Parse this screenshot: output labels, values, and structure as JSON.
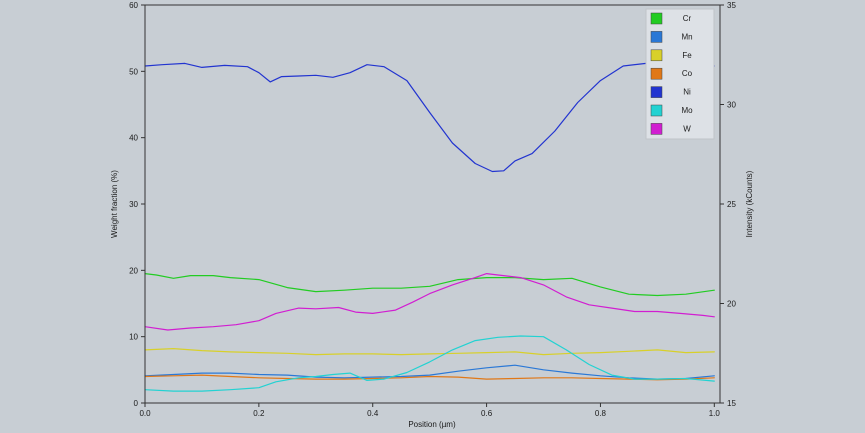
{
  "chart_data": {
    "type": "line",
    "title": "",
    "xlabel": "Position (µm)",
    "ylabel": "Weight fraction (%)",
    "y2label": "Intensity (kCounts)",
    "xlim": [
      0.0,
      1.01
    ],
    "ylim": [
      0,
      60
    ],
    "y2lim": [
      15,
      35
    ],
    "xticks": [
      "0.0",
      "0.2",
      "0.4",
      "0.6",
      "0.8",
      "1.0"
    ],
    "yticks": [
      "0",
      "10",
      "20",
      "30",
      "40",
      "50",
      "60"
    ],
    "y2ticks": [
      "15",
      "20",
      "25",
      "30",
      "35"
    ],
    "grid": false,
    "legend_position": "top-right",
    "series": [
      {
        "name": "Cr",
        "color": "#22cc22",
        "x": [
          0.0,
          0.02,
          0.05,
          0.08,
          0.12,
          0.15,
          0.2,
          0.25,
          0.3,
          0.35,
          0.4,
          0.45,
          0.5,
          0.55,
          0.6,
          0.65,
          0.7,
          0.75,
          0.8,
          0.85,
          0.9,
          0.95,
          1.0
        ],
        "y": [
          19.5,
          19.3,
          18.8,
          19.2,
          19.2,
          18.9,
          18.6,
          17.4,
          16.8,
          17.0,
          17.3,
          17.3,
          17.6,
          18.6,
          18.9,
          18.9,
          18.6,
          18.8,
          17.5,
          16.4,
          16.2,
          16.4,
          17.0
        ]
      },
      {
        "name": "Mn",
        "color": "#2a78d6",
        "x": [
          0.0,
          0.05,
          0.1,
          0.15,
          0.2,
          0.25,
          0.3,
          0.35,
          0.4,
          0.45,
          0.5,
          0.55,
          0.6,
          0.65,
          0.7,
          0.75,
          0.8,
          0.85,
          0.9,
          0.95,
          1.0
        ],
        "y": [
          4.1,
          4.3,
          4.5,
          4.5,
          4.3,
          4.2,
          3.9,
          3.8,
          3.9,
          4.0,
          4.2,
          4.8,
          5.3,
          5.7,
          5.0,
          4.5,
          4.1,
          3.8,
          3.6,
          3.7,
          4.1
        ]
      },
      {
        "name": "Fe",
        "color": "#d8d02a",
        "x": [
          0.0,
          0.05,
          0.1,
          0.15,
          0.2,
          0.25,
          0.3,
          0.35,
          0.4,
          0.45,
          0.5,
          0.55,
          0.6,
          0.65,
          0.7,
          0.75,
          0.8,
          0.85,
          0.9,
          0.95,
          1.0
        ],
        "y": [
          8.0,
          8.2,
          7.9,
          7.7,
          7.6,
          7.5,
          7.3,
          7.4,
          7.4,
          7.3,
          7.4,
          7.5,
          7.6,
          7.7,
          7.3,
          7.5,
          7.6,
          7.8,
          8.0,
          7.6,
          7.7
        ]
      },
      {
        "name": "Co",
        "color": "#e07818",
        "x": [
          0.0,
          0.05,
          0.1,
          0.15,
          0.2,
          0.25,
          0.3,
          0.35,
          0.4,
          0.45,
          0.5,
          0.55,
          0.6,
          0.65,
          0.7,
          0.75,
          0.8,
          0.85,
          0.9,
          0.95,
          1.0
        ],
        "y": [
          4.0,
          4.1,
          4.2,
          4.0,
          3.8,
          3.7,
          3.6,
          3.6,
          3.7,
          3.8,
          4.0,
          3.9,
          3.6,
          3.7,
          3.8,
          3.8,
          3.7,
          3.6,
          3.5,
          3.6,
          3.8
        ]
      },
      {
        "name": "Ni",
        "color": "#2234d0",
        "x": [
          0.0,
          0.03,
          0.07,
          0.1,
          0.14,
          0.18,
          0.2,
          0.22,
          0.24,
          0.27,
          0.3,
          0.33,
          0.36,
          0.39,
          0.42,
          0.46,
          0.5,
          0.54,
          0.58,
          0.61,
          0.63,
          0.65,
          0.68,
          0.72,
          0.76,
          0.8,
          0.84,
          0.88,
          0.92,
          0.96,
          1.0
        ],
        "y": [
          50.8,
          51.0,
          51.2,
          50.6,
          50.9,
          50.7,
          49.8,
          48.4,
          49.2,
          49.3,
          49.4,
          49.1,
          49.8,
          51.0,
          50.7,
          48.6,
          43.8,
          39.2,
          36.1,
          34.9,
          35.0,
          36.5,
          37.6,
          41.0,
          45.3,
          48.6,
          50.8,
          51.2,
          50.9,
          50.9,
          50.8
        ]
      },
      {
        "name": "Mo",
        "color": "#22d2d2",
        "x": [
          0.0,
          0.05,
          0.1,
          0.15,
          0.2,
          0.23,
          0.27,
          0.3,
          0.33,
          0.36,
          0.39,
          0.42,
          0.46,
          0.5,
          0.54,
          0.58,
          0.62,
          0.66,
          0.7,
          0.74,
          0.78,
          0.82,
          0.86,
          0.9,
          0.95,
          1.0
        ],
        "y": [
          2.0,
          1.8,
          1.8,
          2.0,
          2.3,
          3.2,
          3.8,
          4.0,
          4.3,
          4.5,
          3.4,
          3.6,
          4.6,
          6.2,
          8.0,
          9.4,
          9.9,
          10.1,
          10.0,
          8.0,
          5.8,
          4.2,
          3.6,
          3.6,
          3.7,
          3.3
        ]
      },
      {
        "name": "W",
        "color": "#d11ed1",
        "x": [
          0.0,
          0.04,
          0.08,
          0.12,
          0.16,
          0.2,
          0.23,
          0.27,
          0.3,
          0.34,
          0.37,
          0.4,
          0.44,
          0.47,
          0.5,
          0.54,
          0.58,
          0.6,
          0.62,
          0.66,
          0.7,
          0.74,
          0.78,
          0.82,
          0.86,
          0.9,
          0.94,
          0.98,
          1.0
        ],
        "y": [
          11.5,
          11.0,
          11.3,
          11.5,
          11.8,
          12.4,
          13.5,
          14.3,
          14.2,
          14.4,
          13.7,
          13.5,
          14.0,
          15.2,
          16.5,
          17.8,
          18.9,
          19.5,
          19.3,
          18.9,
          17.8,
          16.0,
          14.8,
          14.3,
          13.8,
          13.8,
          13.5,
          13.2,
          13.0
        ]
      }
    ]
  }
}
